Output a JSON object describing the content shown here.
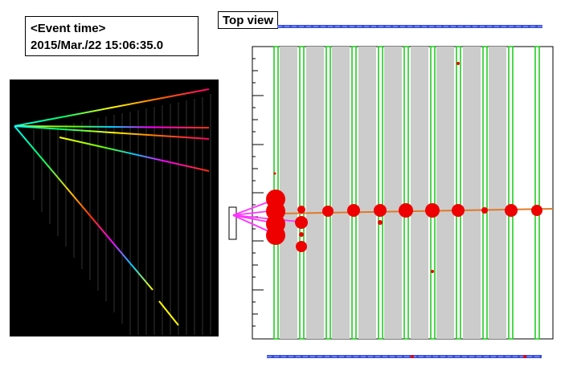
{
  "event": {
    "title": "<Event time>",
    "timestamp": "2015/Mar./22  15:06:35.0"
  },
  "top_view": {
    "title": "Top view"
  },
  "colors": {
    "frame_blue": "#3a4fd8",
    "module_green": "#22cc22",
    "module_gray": "#cccccc",
    "hit_red": "#ee0000",
    "track_orange": "#e07828",
    "beam_magenta": "#ff33ff"
  }
}
